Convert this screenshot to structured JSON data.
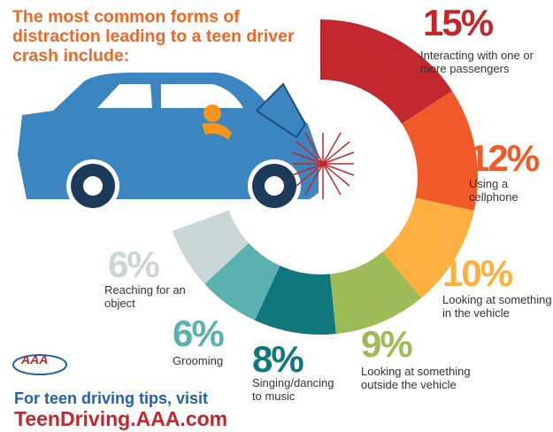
{
  "chart_data": {
    "type": "donut",
    "title": "The most common forms of distraction leading to a teen driver crash include:",
    "categories": [
      "Interacting with one or more passengers",
      "Using a cellphone",
      "Looking at something in the vehicle",
      "Looking at something outside the vehicle",
      "Singing/dancing to music",
      "Grooming",
      "Reaching for an object"
    ],
    "values": [
      15,
      12,
      10,
      9,
      8,
      6,
      6
    ],
    "value_labels": [
      "15%",
      "12%",
      "10%",
      "9%",
      "8%",
      "6%",
      "6%"
    ],
    "colors": [
      "#c1272d",
      "#f05a28",
      "#fbb040",
      "#9dbb56",
      "#10787d",
      "#5bb0b0",
      "#c9d7d7"
    ]
  },
  "logo": "AAA",
  "footer": {
    "text": "For teen driving tips, visit",
    "url": "TeenDriving.AAA.com"
  }
}
